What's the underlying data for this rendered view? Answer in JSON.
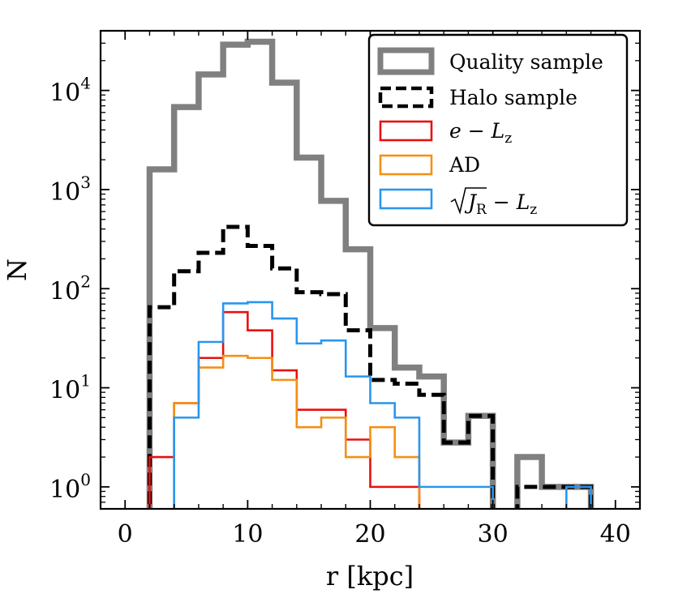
{
  "chart_data": {
    "type": "histogram",
    "xlabel": "r [kpc]",
    "ylabel": "N",
    "xlim": [
      -2,
      42
    ],
    "ylim": [
      0.6,
      40000
    ],
    "yscale": "log",
    "x_ticks": [
      0,
      10,
      20,
      30,
      40
    ],
    "x_tick_labels": [
      "0",
      "10",
      "20",
      "30",
      "40"
    ],
    "y_ticks": [
      1,
      10,
      100,
      1000,
      10000
    ],
    "y_tick_labels": [
      {
        "base": "10",
        "exp": "0"
      },
      {
        "base": "10",
        "exp": "1"
      },
      {
        "base": "10",
        "exp": "2"
      },
      {
        "base": "10",
        "exp": "3"
      },
      {
        "base": "10",
        "exp": "4"
      }
    ],
    "bin_edges": [
      0,
      2,
      4,
      6,
      8,
      10,
      12,
      14,
      16,
      18,
      20,
      22,
      24,
      26,
      28,
      30,
      32,
      34,
      36,
      38,
      40
    ],
    "legend_position": "upper-right",
    "series": [
      {
        "name": "Quality sample",
        "color": "#808080",
        "style": "solid-thick",
        "counts": [
          0,
          1600,
          6800,
          14500,
          29000,
          31000,
          12000,
          2100,
          770,
          250,
          40,
          16,
          13,
          2.8,
          5.2,
          0,
          2,
          1,
          1,
          0
        ]
      },
      {
        "name": "Halo sample",
        "color": "#000000",
        "style": "dashed",
        "counts": [
          0,
          65,
          150,
          230,
          420,
          270,
          160,
          92,
          88,
          38,
          12,
          11,
          8.5,
          2.8,
          5.2,
          0,
          1,
          1,
          1,
          0
        ]
      },
      {
        "name": "e - Lz",
        "name_parts": {
          "e": "e",
          "minus": " − ",
          "L": "L",
          "sub": "z"
        },
        "color": "#e8100f",
        "style": "solid",
        "counts": [
          0,
          2,
          7,
          20,
          58,
          38,
          15,
          6,
          6,
          3,
          1,
          1,
          0,
          0,
          0,
          0,
          0,
          0,
          0,
          0
        ]
      },
      {
        "name": "AD",
        "color": "#f39016",
        "style": "solid",
        "counts": [
          0,
          0,
          7,
          16,
          21,
          20,
          12,
          4,
          5,
          2,
          4,
          2,
          0,
          0,
          0,
          0,
          0,
          0,
          0,
          0
        ]
      },
      {
        "name": "sqrt(JR) - Lz",
        "name_parts": {
          "J": "J",
          "jsub": "R",
          "minus": " − ",
          "L": "L",
          "sub": "z"
        },
        "color": "#2a96ee",
        "style": "solid",
        "counts": [
          0,
          0,
          5,
          29,
          71,
          73,
          50,
          28,
          30,
          13,
          7,
          5,
          1,
          1,
          1,
          0,
          0,
          0,
          1,
          0
        ]
      }
    ]
  }
}
